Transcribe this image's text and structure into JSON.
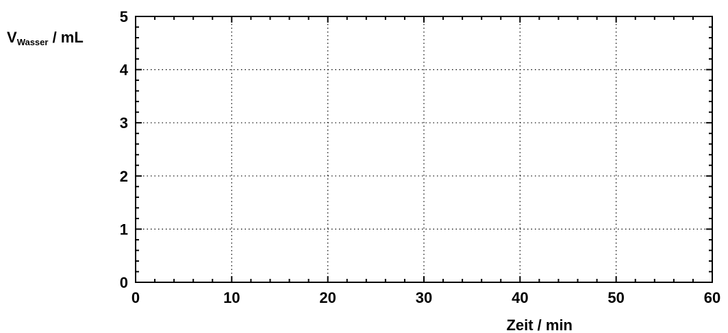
{
  "chart_data": {
    "type": "line",
    "title": "",
    "xlabel": "Zeit / min",
    "ylabel": {
      "main": "V",
      "subscript": "Wasser",
      "suffix": " / mL"
    },
    "xlim": [
      0,
      60
    ],
    "ylim": [
      0,
      5
    ],
    "x_ticks": [
      0,
      10,
      20,
      30,
      40,
      50,
      60
    ],
    "y_ticks": [
      0,
      1,
      2,
      3,
      4,
      5
    ],
    "x_minor_step": 2,
    "y_minor_step": 0.2,
    "grid": true,
    "grid_style": "dotted",
    "series": [],
    "colors": {
      "axis": "#000000",
      "grid": "#000000",
      "background": "#ffffff"
    }
  }
}
